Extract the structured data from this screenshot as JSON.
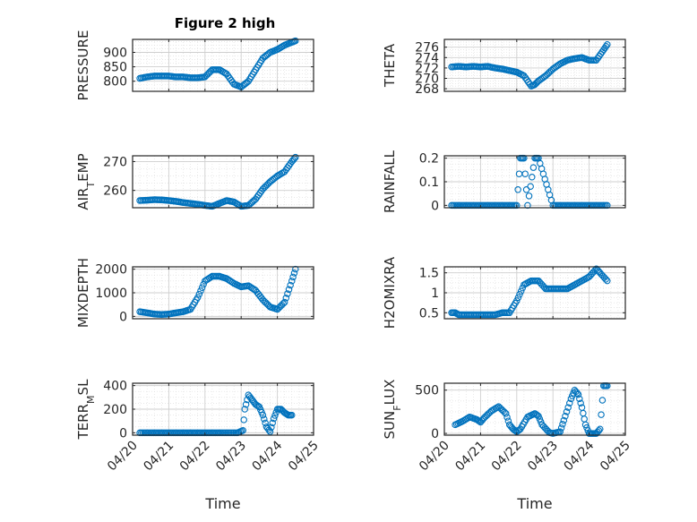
{
  "figure_title": "Figure 2 high",
  "x_tick_labels": [
    "04/20",
    "04/21",
    "04/22",
    "04/23",
    "04/24",
    "04/25"
  ],
  "xlabel": "Time",
  "marker_color": "#0072BD",
  "chart_data": [
    {
      "type": "scatter",
      "title": "Figure 2 high",
      "ylabel": "PRESSURE",
      "xlabel": "",
      "xlim": [
        0,
        5
      ],
      "ylim": [
        765,
        945
      ],
      "yticks": [
        800,
        850,
        900
      ],
      "ytick_labels": [
        "800",
        "850",
        "900"
      ],
      "grid": true,
      "minor_grid": true,
      "series": [
        {
          "x": [
            0.2,
            0.4,
            0.6,
            0.8,
            1.0,
            1.2,
            1.4,
            1.6,
            1.8,
            2.0,
            2.2,
            2.4,
            2.6,
            2.8,
            3.0,
            3.2,
            3.4,
            3.6,
            3.8,
            4.0,
            4.2,
            4.4,
            4.5
          ],
          "y": [
            810,
            815,
            818,
            818,
            818,
            815,
            815,
            812,
            812,
            815,
            840,
            840,
            825,
            790,
            780,
            800,
            840,
            880,
            900,
            910,
            925,
            935,
            940
          ]
        }
      ]
    },
    {
      "type": "scatter",
      "ylabel": "THETA",
      "xlabel": "",
      "xlim": [
        0,
        5
      ],
      "ylim": [
        267.5,
        277.5
      ],
      "yticks": [
        268,
        270,
        272,
        274,
        276
      ],
      "ytick_labels": [
        "268",
        "270",
        "272",
        "274",
        "276"
      ],
      "grid": true,
      "minor_grid": true,
      "series": [
        {
          "x": [
            0.2,
            0.4,
            0.6,
            0.8,
            1.0,
            1.2,
            1.4,
            1.6,
            1.8,
            2.0,
            2.2,
            2.4,
            2.5,
            2.6,
            2.8,
            3.0,
            3.2,
            3.4,
            3.6,
            3.8,
            4.0,
            4.2,
            4.4,
            4.5
          ],
          "y": [
            272.2,
            272.3,
            272.2,
            272.3,
            272.2,
            272.3,
            272.0,
            271.8,
            271.5,
            271.2,
            270.5,
            268.5,
            268.8,
            269.5,
            270.5,
            271.8,
            272.8,
            273.5,
            273.8,
            274.0,
            273.5,
            273.5,
            275.5,
            276.5
          ]
        }
      ]
    },
    {
      "type": "scatter",
      "ylabel": "AIR_TEMP",
      "ylabel_main": "AIR",
      "ylabel_sub": "T",
      "ylabel_rest": "EMP",
      "xlabel": "",
      "xlim": [
        0,
        5
      ],
      "ylim": [
        254,
        272
      ],
      "yticks": [
        260,
        270
      ],
      "ytick_labels": [
        "260",
        "270"
      ],
      "grid": true,
      "minor_grid": true,
      "series": [
        {
          "x": [
            0.2,
            0.4,
            0.6,
            0.8,
            1.0,
            1.2,
            1.4,
            1.6,
            1.8,
            2.0,
            2.2,
            2.4,
            2.6,
            2.8,
            3.0,
            3.2,
            3.4,
            3.6,
            3.8,
            4.0,
            4.2,
            4.4,
            4.5
          ],
          "y": [
            256.5,
            256.6,
            256.8,
            256.7,
            256.5,
            256.2,
            255.8,
            255.5,
            255.2,
            254.8,
            254.5,
            255.5,
            256.5,
            256.0,
            254.5,
            254.8,
            257.0,
            260.5,
            263.0,
            265.0,
            266.5,
            270.0,
            271.5
          ]
        }
      ]
    },
    {
      "type": "scatter",
      "ylabel": "RAINFALL",
      "xlabel": "",
      "xlim": [
        0,
        5
      ],
      "ylim": [
        -0.01,
        0.21
      ],
      "yticks": [
        0,
        0.1,
        0.2
      ],
      "ytick_labels": [
        "0",
        "0.1",
        "0.2"
      ],
      "grid": true,
      "minor_grid": true,
      "series": [
        {
          "x": [
            0.2,
            0.5,
            1.0,
            1.5,
            2.0,
            2.1,
            2.2,
            2.3,
            2.5,
            2.6,
            3.0,
            3.5,
            4.0,
            4.5
          ],
          "y": [
            0,
            0,
            0,
            0,
            0,
            0.2,
            0.2,
            0,
            0.2,
            0.2,
            0,
            0,
            0,
            0
          ]
        }
      ]
    },
    {
      "type": "scatter",
      "ylabel": "MIXDEPTH",
      "xlabel": "",
      "xlim": [
        0,
        5
      ],
      "ylim": [
        -100,
        2100
      ],
      "yticks": [
        0,
        1000,
        2000
      ],
      "ytick_labels": [
        "0",
        "1000",
        "2000"
      ],
      "grid": true,
      "minor_grid": true,
      "series": [
        {
          "x": [
            0.2,
            0.4,
            0.6,
            0.8,
            1.0,
            1.2,
            1.4,
            1.6,
            1.8,
            2.0,
            2.2,
            2.4,
            2.6,
            2.8,
            3.0,
            3.2,
            3.4,
            3.6,
            3.8,
            4.0,
            4.2,
            4.4,
            4.5
          ],
          "y": [
            200,
            150,
            100,
            80,
            100,
            150,
            200,
            300,
            800,
            1500,
            1700,
            1700,
            1600,
            1400,
            1250,
            1300,
            1100,
            700,
            400,
            300,
            600,
            1500,
            2000
          ]
        }
      ]
    },
    {
      "type": "scatter",
      "ylabel": "H2OMIXRA",
      "xlabel": "",
      "xlim": [
        0,
        5
      ],
      "ylim": [
        0.35,
        1.65
      ],
      "yticks": [
        0.5,
        1,
        1.5
      ],
      "ytick_labels": [
        "0.5",
        "1",
        "1.5"
      ],
      "grid": true,
      "minor_grid": true,
      "series": [
        {
          "x": [
            0.2,
            0.3,
            0.4,
            0.6,
            0.8,
            1.0,
            1.2,
            1.4,
            1.6,
            1.8,
            2.0,
            2.2,
            2.4,
            2.6,
            2.8,
            3.0,
            3.2,
            3.4,
            3.6,
            3.8,
            4.0,
            4.2,
            4.3,
            4.5
          ],
          "y": [
            0.5,
            0.5,
            0.45,
            0.45,
            0.45,
            0.45,
            0.45,
            0.45,
            0.5,
            0.5,
            0.8,
            1.2,
            1.3,
            1.3,
            1.1,
            1.1,
            1.1,
            1.1,
            1.2,
            1.3,
            1.4,
            1.6,
            1.5,
            1.3
          ]
        }
      ]
    },
    {
      "type": "scatter",
      "ylabel": "TERR_MSL",
      "ylabel_main": "TERR",
      "ylabel_sub": "M",
      "ylabel_rest": "SL",
      "xlabel": "Time",
      "xlim": [
        0,
        5
      ],
      "ylim": [
        -20,
        420
      ],
      "yticks": [
        0,
        200,
        400
      ],
      "ytick_labels": [
        "0",
        "200",
        "400"
      ],
      "x_tick_labels": [
        "04/20",
        "04/21",
        "04/22",
        "04/23",
        "04/24",
        "04/25"
      ],
      "grid": true,
      "minor_grid": true,
      "series": [
        {
          "x": [
            0.2,
            0.5,
            1.0,
            1.5,
            2.0,
            2.5,
            2.9,
            3.05,
            3.1,
            3.2,
            3.3,
            3.4,
            3.5,
            3.6,
            3.7,
            3.8,
            3.9,
            4.0,
            4.1,
            4.2,
            4.3,
            4.4
          ],
          "y": [
            0,
            0,
            0,
            0,
            0,
            0,
            0,
            20,
            200,
            320,
            280,
            240,
            220,
            150,
            50,
            10,
            120,
            200,
            200,
            170,
            150,
            150
          ]
        }
      ]
    },
    {
      "type": "scatter",
      "ylabel": "SUN_FLUX",
      "ylabel_main": "SUN",
      "ylabel_sub": "F",
      "ylabel_rest": "LUX",
      "xlabel": "Time",
      "xlim": [
        0,
        5
      ],
      "ylim": [
        -20,
        580
      ],
      "yticks": [
        0,
        500
      ],
      "ytick_labels": [
        "0",
        "500"
      ],
      "x_tick_labels": [
        "04/20",
        "04/21",
        "04/22",
        "04/23",
        "04/24",
        "04/25"
      ],
      "grid": true,
      "minor_grid": true,
      "series": [
        {
          "x": [
            0.3,
            0.5,
            0.7,
            0.9,
            1.0,
            1.1,
            1.3,
            1.5,
            1.7,
            1.8,
            1.9,
            2.0,
            2.1,
            2.3,
            2.5,
            2.6,
            2.7,
            2.9,
            3.0,
            3.2,
            3.3,
            3.5,
            3.6,
            3.7,
            3.8,
            3.9,
            4.0,
            4.1,
            4.2,
            4.3,
            4.4,
            4.5
          ],
          "y": [
            100,
            140,
            190,
            160,
            130,
            180,
            260,
            310,
            230,
            100,
            50,
            20,
            50,
            190,
            230,
            200,
            100,
            10,
            0,
            20,
            150,
            400,
            500,
            450,
            300,
            100,
            0,
            0,
            0,
            50,
            550,
            550
          ]
        }
      ]
    }
  ]
}
